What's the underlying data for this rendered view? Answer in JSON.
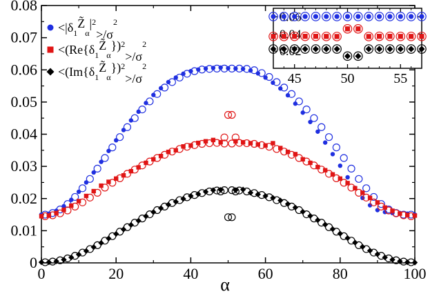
{
  "chart_data": [
    {
      "type": "scatter",
      "title": "",
      "xlabel": "α",
      "ylabel": "",
      "xlim": [
        0,
        100
      ],
      "ylim": [
        0,
        0.08
      ],
      "x_ticks": [
        "0",
        "20",
        "40",
        "60",
        "80",
        "100"
      ],
      "y_ticks": [
        "0",
        "0.01",
        "0.02",
        "0.03",
        "0.04",
        "0.05",
        "0.06",
        "0.07",
        "0.08"
      ],
      "grid": false,
      "legend_position": "top-left",
      "legend": [
        {
          "main": "<|δ",
          "sub1": "1",
          "mid": "Z̃",
          "sub2": "α",
          "tail": "|",
          "sup": "2",
          "end": ">/σ",
          "sup2": "2",
          "color": "#1f2fe0",
          "marker": "circle"
        },
        {
          "main": "<(Re{δ",
          "sub1": "1",
          "mid": "Z̃",
          "sub2": "α",
          "tail": "})",
          "sup": "2",
          "end": ">/σ",
          "sup2": "2",
          "color": "#e01515",
          "marker": "square"
        },
        {
          "main": "<(Im{δ",
          "sub1": "1",
          "mid": "Z̃",
          "sub2": "α",
          "tail": "})",
          "sup": "2",
          "end": ">/σ",
          "sup2": "2",
          "color": "#000000",
          "marker": "diamond"
        }
      ],
      "series": [
        {
          "color": "#1f2fe0",
          "marker": "circle",
          "filled": {
            "x": [
              0,
              2,
              4,
              6,
              8,
              10,
              12,
              14,
              16,
              18,
              20,
              22,
              24,
              26,
              28,
              30,
              32,
              34,
              36,
              38,
              40,
              42,
              44,
              46,
              48,
              50,
              52,
              54,
              56,
              58,
              60,
              62,
              64,
              66,
              68,
              70,
              72,
              74,
              76,
              78,
              80,
              82,
              84,
              86,
              88,
              90,
              92,
              94,
              96,
              98,
              100
            ],
            "y": [
              0.015,
              0.0153,
              0.0162,
              0.0176,
              0.0196,
              0.0221,
              0.025,
              0.0281,
              0.0314,
              0.0348,
              0.0381,
              0.0413,
              0.0443,
              0.047,
              0.0497,
              0.0522,
              0.0543,
              0.0562,
              0.0576,
              0.0588,
              0.0596,
              0.0601,
              0.0604,
              0.0606,
              0.0607,
              0.0605,
              0.0604,
              0.0603,
              0.0598,
              0.0589,
              0.0576,
              0.056,
              0.0542,
              0.0521,
              0.0495,
              0.0467,
              0.0438,
              0.0408,
              0.0374,
              0.0338,
              0.0302,
              0.0266,
              0.0233,
              0.0202,
              0.0179,
              0.0164,
              0.0158,
              0.0155,
              0.0155,
              0.0153,
              0.015
            ]
          },
          "open": {
            "x": [
              1,
              3,
              5,
              7,
              9,
              11,
              13,
              15,
              17,
              19,
              21,
              23,
              25,
              27,
              29,
              31,
              33,
              35,
              37,
              39,
              41,
              43,
              45,
              47,
              49,
              51,
              53,
              55,
              57,
              59,
              61,
              63,
              65,
              67,
              69,
              71,
              73,
              75,
              77,
              79,
              81,
              83,
              85,
              87,
              89,
              91,
              93,
              95,
              97,
              99
            ],
            "y": [
              0.015,
              0.0155,
              0.0166,
              0.0183,
              0.0205,
              0.0232,
              0.0261,
              0.0293,
              0.0326,
              0.0359,
              0.0391,
              0.0422,
              0.045,
              0.0477,
              0.0502,
              0.0525,
              0.0545,
              0.0562,
              0.0576,
              0.0588,
              0.0596,
              0.0601,
              0.0603,
              0.0604,
              0.0604,
              0.0604,
              0.0604,
              0.0603,
              0.0599,
              0.059,
              0.0578,
              0.0562,
              0.0545,
              0.0525,
              0.0502,
              0.0477,
              0.045,
              0.0422,
              0.0391,
              0.0359,
              0.0326,
              0.0293,
              0.0261,
              0.0232,
              0.0205,
              0.0183,
              0.0166,
              0.0155,
              0.015,
              0.015
            ]
          }
        },
        {
          "color": "#e01515",
          "marker": "square",
          "filled": {
            "x": [
              0,
              2,
              4,
              6,
              8,
              10,
              12,
              14,
              16,
              18,
              20,
              22,
              24,
              26,
              28,
              30,
              32,
              34,
              36,
              38,
              40,
              42,
              44,
              46,
              48,
              52,
              54,
              56,
              58,
              60,
              62,
              64,
              66,
              68,
              70,
              72,
              74,
              76,
              78,
              80,
              82,
              84,
              86,
              88,
              90,
              92,
              94,
              96,
              98,
              100
            ],
            "y": [
              0.0145,
              0.0147,
              0.0155,
              0.0165,
              0.0178,
              0.0192,
              0.0208,
              0.0223,
              0.024,
              0.0252,
              0.0262,
              0.0272,
              0.0285,
              0.0297,
              0.0311,
              0.0322,
              0.0332,
              0.0345,
              0.035,
              0.0362,
              0.0365,
              0.0373,
              0.0378,
              0.0382,
              0.0375,
              0.0378,
              0.0375,
              0.0372,
              0.0368,
              0.0365,
              0.0372,
              0.0357,
              0.0345,
              0.0338,
              0.0322,
              0.0311,
              0.0298,
              0.0288,
              0.0275,
              0.0262,
              0.0248,
              0.0232,
              0.0218,
              0.0202,
              0.0188,
              0.0172,
              0.0162,
              0.0153,
              0.0149,
              0.0147
            ]
          },
          "open": {
            "x": [
              1,
              3,
              5,
              7,
              9,
              11,
              13,
              15,
              17,
              19,
              21,
              23,
              25,
              27,
              29,
              31,
              33,
              35,
              37,
              39,
              41,
              43,
              45,
              47,
              49,
              51,
              53,
              55,
              57,
              59,
              61,
              63,
              65,
              67,
              69,
              71,
              73,
              75,
              77,
              79,
              81,
              83,
              85,
              87,
              89,
              91,
              93,
              95,
              97,
              99
            ],
            "y": [
              0.0145,
              0.0148,
              0.0154,
              0.0163,
              0.0175,
              0.0188,
              0.0203,
              0.0218,
              0.0234,
              0.0249,
              0.0263,
              0.0277,
              0.029,
              0.0303,
              0.0315,
              0.0326,
              0.0336,
              0.0346,
              0.0354,
              0.0361,
              0.0366,
              0.037,
              0.0372,
              0.0373,
              0.0371,
              0.0371,
              0.0373,
              0.0372,
              0.037,
              0.0366,
              0.0361,
              0.0354,
              0.0346,
              0.0336,
              0.0326,
              0.0315,
              0.0303,
              0.029,
              0.0277,
              0.0263,
              0.0249,
              0.0234,
              0.0218,
              0.0203,
              0.0188,
              0.0175,
              0.0163,
              0.0154,
              0.0148,
              0.0145
            ]
          },
          "jump_open": {
            "x": [
              50,
              51
            ],
            "y": [
              0.046,
              0.046
            ]
          },
          "jump_peak_open": {
            "x": [
              49,
              52
            ],
            "y": [
              0.039,
              0.039
            ]
          }
        },
        {
          "color": "#000000",
          "marker": "diamond",
          "filled": {
            "x": [
              0,
              2,
              4,
              6,
              8,
              10,
              12,
              14,
              16,
              18,
              20,
              22,
              24,
              26,
              28,
              30,
              32,
              34,
              36,
              38,
              40,
              42,
              44,
              46,
              48,
              52,
              54,
              56,
              58,
              60,
              62,
              64,
              66,
              68,
              70,
              72,
              74,
              76,
              78,
              80,
              82,
              84,
              86,
              88,
              90,
              92,
              94,
              96,
              98,
              100
            ],
            "y": [
              0.0002,
              0.0002,
              0.0005,
              0.001,
              0.0017,
              0.0026,
              0.0037,
              0.0049,
              0.0062,
              0.0076,
              0.009,
              0.0104,
              0.0118,
              0.0131,
              0.0145,
              0.0158,
              0.017,
              0.0181,
              0.019,
              0.0199,
              0.0208,
              0.0214,
              0.0221,
              0.0226,
              0.0227,
              0.0226,
              0.0228,
              0.0218,
              0.0213,
              0.0208,
              0.0202,
              0.0194,
              0.0183,
              0.0172,
              0.0159,
              0.0146,
              0.0133,
              0.0119,
              0.0105,
              0.0091,
              0.0077,
              0.0063,
              0.005,
              0.0038,
              0.0027,
              0.0017,
              0.001,
              0.0005,
              0.0002,
              0.0001
            ]
          },
          "open": {
            "x": [
              1,
              3,
              5,
              7,
              9,
              11,
              13,
              15,
              17,
              19,
              21,
              23,
              25,
              27,
              29,
              31,
              33,
              35,
              37,
              39,
              41,
              43,
              45,
              47,
              49,
              51,
              53,
              55,
              57,
              59,
              61,
              63,
              65,
              67,
              69,
              71,
              73,
              75,
              77,
              79,
              81,
              83,
              85,
              87,
              89,
              91,
              93,
              95,
              97,
              99
            ],
            "y": [
              0.0002,
              0.0004,
              0.0008,
              0.0014,
              0.0022,
              0.0032,
              0.0043,
              0.0055,
              0.0069,
              0.0083,
              0.0097,
              0.0111,
              0.0125,
              0.0138,
              0.0151,
              0.0164,
              0.0175,
              0.0186,
              0.0195,
              0.0204,
              0.0211,
              0.0217,
              0.0222,
              0.0225,
              0.0226,
              0.0226,
              0.0225,
              0.0222,
              0.0217,
              0.0211,
              0.0204,
              0.0195,
              0.0186,
              0.0175,
              0.0164,
              0.0151,
              0.0138,
              0.0125,
              0.0111,
              0.0097,
              0.0083,
              0.0069,
              0.0055,
              0.0043,
              0.0032,
              0.0022,
              0.0014,
              0.0008,
              0.0004,
              0.0002
            ]
          },
          "jump_open": {
            "x": [
              50,
              51
            ],
            "y": [
              0.0142,
              0.0142
            ]
          },
          "jump_peak_open": {
            "x": [
              48,
              52
            ],
            "y": [
              0.0222,
              0.0222
            ]
          }
        }
      ]
    },
    {
      "type": "scatter",
      "title": "",
      "xlabel": "",
      "ylabel": "",
      "xlim": [
        43,
        57
      ],
      "ylim": [
        0,
        0.07
      ],
      "x_ticks": [
        "45",
        "50",
        "55"
      ],
      "y_ticks": [
        "0.02",
        "0.04",
        "0.06"
      ],
      "series": [
        {
          "color": "#1f2fe0",
          "marker": "circle",
          "x": [
            43,
            44,
            45,
            46,
            47,
            48,
            49,
            50,
            51,
            52,
            53,
            54,
            55,
            56,
            57
          ],
          "y": [
            0.0604,
            0.0604,
            0.0604,
            0.0604,
            0.0604,
            0.0604,
            0.0604,
            0.0604,
            0.0604,
            0.0604,
            0.0604,
            0.0604,
            0.0604,
            0.0604,
            0.0604
          ]
        },
        {
          "color": "#e01515",
          "marker": "square",
          "x": [
            43,
            44,
            45,
            46,
            47,
            48,
            49,
            50,
            51,
            52,
            53,
            54,
            55,
            56,
            57
          ],
          "y": [
            0.0372,
            0.0372,
            0.0373,
            0.0373,
            0.0373,
            0.0372,
            0.0371,
            0.046,
            0.046,
            0.0371,
            0.0373,
            0.0373,
            0.0372,
            0.0372,
            0.0372
          ]
        },
        {
          "color": "#000000",
          "marker": "diamond",
          "x": [
            43,
            44,
            45,
            46,
            47,
            48,
            49,
            50,
            51,
            52,
            53,
            54,
            55,
            56,
            57
          ],
          "y": [
            0.0225,
            0.0225,
            0.0225,
            0.0225,
            0.0225,
            0.0225,
            0.0225,
            0.0142,
            0.0142,
            0.0225,
            0.0225,
            0.0225,
            0.0225,
            0.0225,
            0.0225
          ]
        }
      ]
    }
  ]
}
